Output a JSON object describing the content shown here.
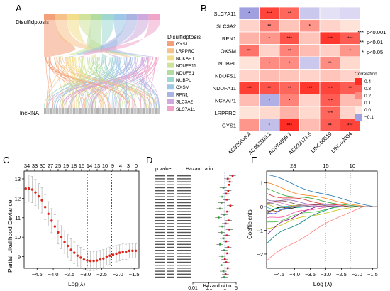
{
  "panels": {
    "A": {
      "letter": "A",
      "top_label": "Disulfidptosis",
      "bottom_label": "lncRNA",
      "legend_title": "Disulfidptosis",
      "legend": [
        {
          "name": "GYS1",
          "color": "#f4a07a"
        },
        {
          "name": "LRPPRC",
          "color": "#f7c28a"
        },
        {
          "name": "NCKAP1",
          "color": "#f2de8b"
        },
        {
          "name": "NDUFA11",
          "color": "#cfe49a"
        },
        {
          "name": "NDUFS1",
          "color": "#b3dca0"
        },
        {
          "name": "NUBPL",
          "color": "#9fd8cf"
        },
        {
          "name": "OXSM",
          "color": "#9cc7e6"
        },
        {
          "name": "RPN1",
          "color": "#a9b4e3"
        },
        {
          "name": "SLC3A2",
          "color": "#cfa9dd"
        },
        {
          "name": "SLC7A11",
          "color": "#f0a4c8"
        }
      ]
    },
    "B": {
      "letter": "B",
      "rows": [
        "SLC7A11",
        "SLC3A2",
        "RPN1",
        "OXSM",
        "NUBPL",
        "NDUFS1",
        "NDUFA11",
        "NCKAP1",
        "LRPPRC",
        "GYS1"
      ],
      "cols": [
        "AC025048.4",
        "AC053503.1",
        "AC074099.1",
        "AC092171.5",
        "LINC00519",
        "LINC02004"
      ],
      "legend_title": "Correlation",
      "legend_ticks": [
        "0.4",
        "0.3",
        "0.2",
        "0.1",
        "0.0",
        "−0.1"
      ],
      "sig_legend": [
        {
          "stars": "***",
          "label": "p<0.001"
        },
        {
          "stars": "**",
          "label": "p<0.01"
        },
        {
          "stars": "*",
          "label": "p<0.05"
        }
      ]
    },
    "C": {
      "letter": "C",
      "ylabel": "Partial Likelihood Deviance",
      "xlabel": "Log(λ)",
      "top_ticks": [
        "34",
        "33",
        "30",
        "27",
        "25",
        "19",
        "18",
        "15",
        "14",
        "13",
        "10",
        "9",
        "4",
        "3",
        "0"
      ],
      "x_ticks": [
        "−4.5",
        "−4.0",
        "−3.5",
        "−3.0",
        "−2.5",
        "−2.0",
        "−1.5"
      ],
      "y_ticks": [
        "9",
        "10",
        "11",
        "12",
        "13"
      ]
    },
    "D": {
      "letter": "D",
      "header_p": "p value",
      "header_hr": "Hazard ratio",
      "x_ticks": [
        "0.01",
        "0.1",
        "1",
        "5"
      ],
      "xlabel": "Hazard ratio"
    },
    "E": {
      "letter": "E",
      "ylabel": "Coefficients",
      "xlabel": "Log (λ)",
      "top_ticks": [
        "28",
        "15",
        "10"
      ],
      "x_ticks": [
        "−4.5",
        "−4.0",
        "−3.5",
        "−3.0",
        "−2.5",
        "−2.0",
        "−1.5"
      ],
      "y_ticks": [
        "1",
        "0",
        "−1",
        "−2"
      ]
    }
  },
  "chart_data": [
    {
      "type": "heatmap",
      "panel": "B",
      "rows": [
        "SLC7A11",
        "SLC3A2",
        "RPN1",
        "OXSM",
        "NUBPL",
        "NDUFS1",
        "NDUFA11",
        "NCKAP1",
        "LRPPRC",
        "GYS1"
      ],
      "cols": [
        "AC025048.4",
        "AC053503.1",
        "AC074099.1",
        "AC092171.5",
        "LINC00519",
        "LINC02004"
      ],
      "values": [
        [
          -0.12,
          0.35,
          0.28,
          -0.05,
          -0.02,
          -0.03
        ],
        [
          0.05,
          0.22,
          0.08,
          0.18,
          0.05,
          0.02
        ],
        [
          0.12,
          0.18,
          0.32,
          0.08,
          0.38,
          0.3
        ],
        [
          0.25,
          0.05,
          0.22,
          0.1,
          0.06,
          0.18
        ],
        [
          0.02,
          0.2,
          0.2,
          -0.05,
          0.2,
          0.04
        ],
        [
          0.05,
          0.1,
          0.08,
          0.05,
          0.08,
          0.05
        ],
        [
          0.36,
          0.32,
          0.28,
          0.38,
          0.35,
          0.3
        ],
        [
          0.1,
          -0.08,
          0.22,
          0.05,
          0.3,
          0.1
        ],
        [
          0.02,
          0.04,
          0.12,
          0.04,
          0.28,
          0.05
        ],
        [
          0.18,
          -0.06,
          0.45,
          0.1,
          0.3,
          0.35
        ]
      ],
      "stars": [
        [
          "*",
          "***",
          "**",
          "",
          "",
          ""
        ],
        [
          "",
          "**",
          "",
          "*",
          "",
          ""
        ],
        [
          "",
          "*",
          "***",
          "",
          "***",
          "***"
        ],
        [
          "**",
          "",
          "**",
          "",
          "",
          "*"
        ],
        [
          "",
          "*",
          "*",
          "",
          "**",
          ""
        ],
        [
          "",
          "",
          "",
          "",
          "",
          ""
        ],
        [
          "***",
          "**",
          "**",
          "***",
          "***",
          "**"
        ],
        [
          "",
          "*",
          "*",
          "",
          "***",
          ""
        ],
        [
          "",
          "",
          "",
          "",
          "***",
          ""
        ],
        [
          "",
          "*",
          "***",
          "",
          "**",
          "***"
        ]
      ],
      "legend_range": [
        -0.1,
        0.4
      ]
    },
    {
      "type": "line",
      "panel": "C",
      "x": [
        -4.85,
        -4.75,
        -4.65,
        -4.55,
        -4.45,
        -4.35,
        -4.25,
        -4.15,
        -4.05,
        -3.95,
        -3.85,
        -3.75,
        -3.65,
        -3.55,
        -3.45,
        -3.35,
        -3.25,
        -3.15,
        -3.05,
        -2.95,
        -2.85,
        -2.75,
        -2.65,
        -2.55,
        -2.45,
        -2.35,
        -2.25,
        -2.15,
        -2.05,
        -1.95,
        -1.85,
        -1.75,
        -1.65,
        -1.55,
        -1.45
      ],
      "y": [
        12.5,
        12.5,
        12.45,
        12.3,
        12.1,
        11.9,
        11.55,
        11.2,
        10.85,
        10.55,
        10.25,
        10.0,
        9.75,
        9.55,
        9.35,
        9.2,
        9.05,
        8.95,
        8.85,
        8.8,
        8.78,
        8.78,
        8.8,
        8.85,
        8.9,
        9.0,
        9.05,
        9.1,
        9.15,
        9.2,
        9.25,
        9.25,
        9.3,
        9.3,
        9.3
      ],
      "err": 0.7,
      "vlines": [
        -2.95,
        -2.2
      ],
      "xlim": [
        -4.9,
        -1.35
      ],
      "ylim": [
        8.4,
        13.4
      ]
    },
    {
      "type": "scatter",
      "panel": "D",
      "hr": [
        3.0,
        1.5,
        2.0,
        1.8,
        0.8,
        1.6,
        1.2,
        0.7,
        1.3,
        0.6,
        2.2,
        0.5,
        1.4,
        0.9,
        0.4,
        1.7,
        1.1,
        0.7,
        1.9,
        0.6,
        1.3,
        0.8,
        1.2,
        0.5,
        1.6,
        0.9,
        1.4,
        0.7,
        1.0,
        1.2,
        0.6,
        1.5,
        0.8,
        1.1,
        0.9
      ],
      "color_by": "hazard ratio above 1 red, below 1 green"
    },
    {
      "type": "line",
      "panel": "E",
      "xlim": [
        -4.9,
        -1.35
      ],
      "ylim": [
        -2.6,
        1.5
      ]
    }
  ]
}
